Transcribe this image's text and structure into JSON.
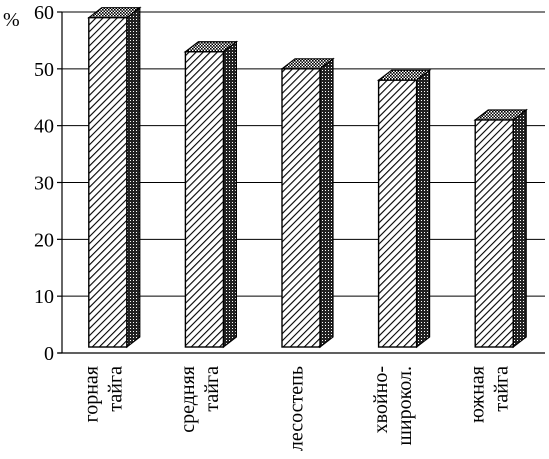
{
  "chart_data": {
    "type": "bar",
    "ylabel": "%",
    "ylim": [
      0,
      60
    ],
    "yticks": [
      "0",
      "10",
      "20",
      "30",
      "40",
      "50",
      "60"
    ],
    "categories": [
      [
        "горная",
        "тайга"
      ],
      [
        "средняя",
        "тайга"
      ],
      [
        "лесостепь"
      ],
      [
        "хвойно-",
        "широкол."
      ],
      [
        "южная",
        "тайга"
      ]
    ],
    "values": [
      59,
      53,
      50,
      48,
      41
    ],
    "style": "3d-hatched",
    "grid": true,
    "colors": {
      "line": "#000000",
      "background": "#ffffff"
    }
  }
}
